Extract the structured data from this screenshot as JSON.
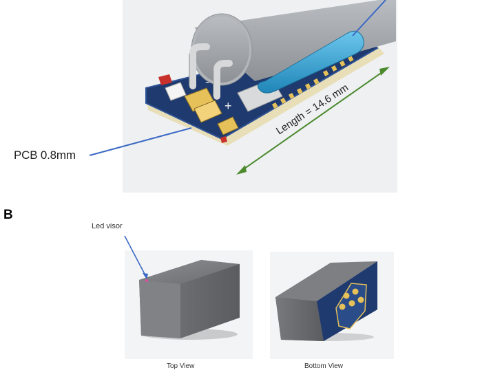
{
  "panel_b": {
    "letter": "B"
  },
  "labels": {
    "pcb": "PCB 0.8mm",
    "length": "Length = 14.6 mm",
    "led_visor": "Led visor"
  },
  "captions": {
    "top_view": "Top View",
    "bottom_view": "Bottom View"
  },
  "colors": {
    "pcb_board": "#1e3a6e",
    "pcb_edge": "#e8dfb8",
    "cylinder": "#a9adb1",
    "crystal": "#2e9fd1",
    "pads": "#e6c15a",
    "case": "#6e7075",
    "leader_line": "#3a68c4",
    "length_arrow": "#4d8a2e"
  }
}
